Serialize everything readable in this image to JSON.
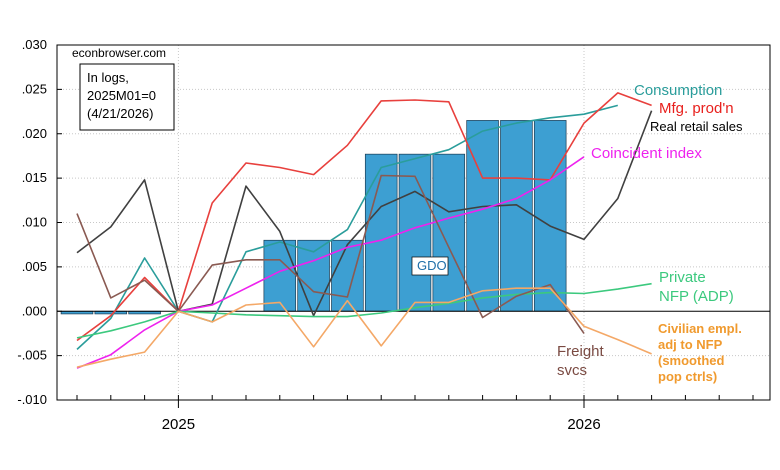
{
  "chart_data": {
    "type": "line",
    "source_label": "econbrowser.com",
    "note_lines": [
      "In logs,",
      "2025M01=0",
      "(4/21/2026)"
    ],
    "x_start": "2024-10",
    "x_ticks": [
      {
        "label": "2025",
        "x": "2025-01"
      },
      {
        "label": "2026",
        "x": "2026-01"
      }
    ],
    "ylim": [
      -0.01,
      0.03
    ],
    "yticks": [
      -0.01,
      -0.005,
      0.0,
      0.005,
      0.01,
      0.015,
      0.02,
      0.025,
      0.03
    ],
    "ytick_labels": [
      "-.010",
      "-.005",
      ".000",
      ".005",
      ".010",
      ".015",
      ".020",
      ".025",
      ".030"
    ],
    "bars": {
      "name": "GDO",
      "color": "#3d9fd2",
      "items": [
        {
          "x": "2024-10",
          "y": -0.0003
        },
        {
          "x": "2024-11",
          "y": -0.0003
        },
        {
          "x": "2024-12",
          "y": -0.0003
        },
        {
          "x": "2025-04",
          "y": 0.008
        },
        {
          "x": "2025-05",
          "y": 0.008
        },
        {
          "x": "2025-06",
          "y": 0.008
        },
        {
          "x": "2025-07",
          "y": 0.0177
        },
        {
          "x": "2025-08",
          "y": 0.0177
        },
        {
          "x": "2025-09",
          "y": 0.0177
        },
        {
          "x": "2025-10",
          "y": 0.0215
        },
        {
          "x": "2025-11",
          "y": 0.0215
        },
        {
          "x": "2025-12",
          "y": 0.0215
        }
      ]
    },
    "series": [
      {
        "name": "Consumption",
        "color": "#2a9d9b",
        "x": [
          "2024-10",
          "2024-11",
          "2024-12",
          "2025-01",
          "2025-02",
          "2025-03",
          "2025-04",
          "2025-05",
          "2025-06",
          "2025-07",
          "2025-08",
          "2025-09",
          "2025-10",
          "2025-11",
          "2025-12",
          "2026-01",
          "2026-02"
        ],
        "values": [
          -0.0043,
          -0.0008,
          0.006,
          0.0,
          -0.0012,
          0.0067,
          0.0078,
          0.0067,
          0.0092,
          0.0162,
          0.0172,
          0.0182,
          0.0203,
          0.0212,
          0.0218,
          0.0222,
          0.0232
        ]
      },
      {
        "name": "Mfg. prod'n",
        "color": "#e8403d",
        "x": [
          "2024-10",
          "2024-11",
          "2024-12",
          "2025-01",
          "2025-02",
          "2025-03",
          "2025-04",
          "2025-05",
          "2025-06",
          "2025-07",
          "2025-08",
          "2025-09",
          "2025-10",
          "2025-11",
          "2025-12",
          "2026-01",
          "2026-02",
          "2026-03"
        ],
        "values": [
          -0.0033,
          -0.0005,
          0.0038,
          0.0,
          0.0122,
          0.0167,
          0.0162,
          0.0154,
          0.0187,
          0.0237,
          0.0238,
          0.0236,
          0.015,
          0.015,
          0.0148,
          0.0212,
          0.0246,
          0.0232
        ]
      },
      {
        "name": "Real retail sales",
        "color": "#404040",
        "x": [
          "2024-10",
          "2024-11",
          "2024-12",
          "2025-01",
          "2025-02",
          "2025-03",
          "2025-04",
          "2025-05",
          "2025-06",
          "2025-07",
          "2025-08",
          "2025-09",
          "2025-10",
          "2025-11",
          "2025-12",
          "2026-01",
          "2026-02",
          "2026-03"
        ],
        "values": [
          0.0066,
          0.0095,
          0.0148,
          0.0,
          0.0008,
          0.0141,
          0.009,
          -0.0005,
          0.0075,
          0.0118,
          0.0135,
          0.0112,
          0.0118,
          0.012,
          0.0096,
          0.0081,
          0.0127,
          0.0226
        ]
      },
      {
        "name": "Coincident index",
        "color": "#ee22ee",
        "x": [
          "2024-10",
          "2024-11",
          "2024-12",
          "2025-01",
          "2025-02",
          "2025-03",
          "2025-04",
          "2025-05",
          "2025-06",
          "2025-07",
          "2025-08",
          "2025-09",
          "2025-10",
          "2025-11",
          "2025-12",
          "2026-01"
        ],
        "values": [
          -0.0064,
          -0.0049,
          -0.0021,
          0.0,
          0.0007,
          0.0026,
          0.0045,
          0.0057,
          0.0072,
          0.008,
          0.0094,
          0.0105,
          0.0115,
          0.0127,
          0.0148,
          0.0174
        ]
      },
      {
        "name": "Private NFP (ADP)",
        "color": "#3cc97e",
        "x": [
          "2024-10",
          "2024-11",
          "2024-12",
          "2025-01",
          "2025-02",
          "2025-03",
          "2025-04",
          "2025-05",
          "2025-06",
          "2025-07",
          "2025-08",
          "2025-09",
          "2025-10",
          "2025-11",
          "2025-12",
          "2026-01",
          "2026-02",
          "2026-03"
        ],
        "values": [
          -0.003,
          -0.0022,
          -0.0012,
          0.0,
          -0.0002,
          -0.0004,
          -0.0005,
          -0.0006,
          -0.0006,
          -0.0002,
          0.0004,
          0.0009,
          0.0015,
          0.0019,
          0.0021,
          0.002,
          0.0025,
          0.0031
        ]
      },
      {
        "name": "Freight svcs",
        "color": "#8a5a52",
        "x": [
          "2024-10",
          "2024-11",
          "2024-12",
          "2025-01",
          "2025-02",
          "2025-03",
          "2025-04",
          "2025-05",
          "2025-06",
          "2025-07",
          "2025-08",
          "2025-09",
          "2025-10",
          "2025-11",
          "2025-12",
          "2026-01"
        ],
        "values": [
          0.011,
          0.0015,
          0.0035,
          0.0,
          0.0052,
          0.0058,
          0.0058,
          0.0022,
          0.0016,
          0.0153,
          0.0152,
          0.0072,
          -0.0007,
          0.0017,
          0.003,
          -0.0025
        ]
      },
      {
        "name": "Civilian empl. adj to NFP (smoothed pop ctrls)",
        "color": "#f4a867",
        "x": [
          "2024-10",
          "2024-11",
          "2024-12",
          "2025-01",
          "2025-02",
          "2025-03",
          "2025-04",
          "2025-05",
          "2025-06",
          "2025-07",
          "2025-08",
          "2025-09",
          "2025-10",
          "2025-11",
          "2025-12",
          "2026-01",
          "2026-02",
          "2026-03"
        ],
        "values": [
          -0.0063,
          -0.0054,
          -0.0046,
          0.0,
          -0.0012,
          0.0007,
          0.001,
          -0.004,
          0.0012,
          -0.0039,
          0.001,
          0.001,
          0.0023,
          0.0026,
          0.0026,
          -0.0017,
          -0.0032,
          -0.0048
        ]
      }
    ],
    "labels": [
      {
        "lines": [
          "Consumption"
        ],
        "color": "#2a9d9b"
      },
      {
        "lines": [
          "Mfg. prod'n"
        ],
        "color": "#e8201d"
      },
      {
        "lines": [
          "Real retail sales"
        ],
        "color": "#000000"
      },
      {
        "lines": [
          "Coincident index"
        ],
        "color": "#ee22ee"
      },
      {
        "lines": [
          "GDO"
        ],
        "color": "#1f6fa8"
      },
      {
        "lines": [
          "Private",
          "NFP (ADP)"
        ],
        "color": "#3cc97e"
      },
      {
        "lines": [
          "Freight",
          "svcs"
        ],
        "color": "#7a4a42"
      },
      {
        "lines": [
          "Civilian empl.",
          "adj to NFP",
          "(smoothed",
          "pop ctrls)"
        ],
        "color": "#f09a2e"
      }
    ]
  }
}
